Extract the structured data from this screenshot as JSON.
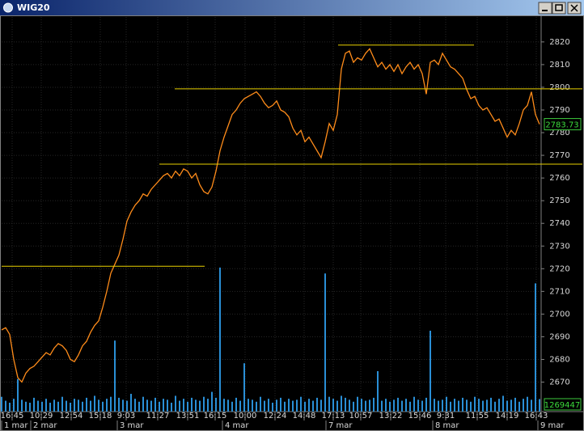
{
  "chart_data": {
    "type": "line",
    "title": "WIG20",
    "xlim": [
      0,
      133
    ],
    "xticks": [
      {
        "value": 2.6,
        "label": "16:45"
      },
      {
        "value": 9.8,
        "label": "10:29"
      },
      {
        "value": 17.2,
        "label": "12:54"
      },
      {
        "value": 24.4,
        "label": "15:18"
      },
      {
        "value": 30.8,
        "label": "9:03"
      },
      {
        "value": 38.6,
        "label": "11:27"
      },
      {
        "value": 46,
        "label": "13:51"
      },
      {
        "value": 52.8,
        "label": "16:15"
      },
      {
        "value": 60.2,
        "label": "10:00"
      },
      {
        "value": 67.6,
        "label": "12:24"
      },
      {
        "value": 74.8,
        "label": "14:48"
      },
      {
        "value": 82,
        "label": "17:13"
      },
      {
        "value": 88.8,
        "label": "10:57"
      },
      {
        "value": 96.2,
        "label": "13:22"
      },
      {
        "value": 103.4,
        "label": "15:46"
      },
      {
        "value": 109.8,
        "label": "9:31"
      },
      {
        "value": 117.6,
        "label": "11:55"
      },
      {
        "value": 125,
        "label": "14:19"
      },
      {
        "value": 132.2,
        "label": "16:43"
      }
    ],
    "date_ticks": [
      {
        "value": 0,
        "label": "1 mar"
      },
      {
        "value": 7.2,
        "label": "2 mar"
      },
      {
        "value": 28.6,
        "label": "3 mar"
      },
      {
        "value": 54.6,
        "label": "4 mar"
      },
      {
        "value": 80.2,
        "label": "7 mar"
      },
      {
        "value": 106.6,
        "label": "8 mar"
      },
      {
        "value": 132.6,
        "label": "9 mar"
      }
    ],
    "ylim": [
      2657,
      2831
    ],
    "yticks": [
      2670,
      2680,
      2690,
      2700,
      2710,
      2720,
      2730,
      2740,
      2750,
      2760,
      2770,
      2780,
      2790,
      2800,
      2810,
      2820
    ],
    "y2lim": [
      0,
      40000000
    ],
    "grid": true,
    "hlines": [
      {
        "value": 2818.6,
        "x0": 83.2,
        "x1": 116.8
      },
      {
        "value": 2799.3,
        "x0": 42.8,
        "x1": 143.6
      },
      {
        "value": 2766.1,
        "x0": 39,
        "x1": 143.6
      },
      {
        "value": 2721.1,
        "x0": 0,
        "x1": 50.2
      }
    ],
    "hline_color": "#e8d000",
    "series": [
      {
        "color": "#ff8c1a",
        "values": [
          2693,
          2694,
          2691,
          2680,
          2672,
          2670,
          2674,
          2676,
          2677,
          2679,
          2681,
          2683,
          2682,
          2685,
          2687,
          2686,
          2684,
          2680,
          2679,
          2682,
          2686,
          2688,
          2692,
          2695,
          2697,
          2703,
          2710,
          2718,
          2722,
          2726,
          2733,
          2741,
          2745,
          2748,
          2750,
          2753,
          2752,
          2755,
          2757,
          2759,
          2761,
          2762,
          2760,
          2763,
          2761,
          2764,
          2763,
          2760,
          2762,
          2757,
          2754,
          2753,
          2756,
          2763,
          2772,
          2778,
          2783,
          2788,
          2790,
          2793,
          2795,
          2796,
          2797,
          2798,
          2796,
          2793,
          2791,
          2792,
          2794,
          2790,
          2789,
          2787,
          2782,
          2779,
          2781,
          2776,
          2778,
          2775,
          2772,
          2769,
          2776,
          2784,
          2781,
          2788,
          2808,
          2815,
          2816,
          2811,
          2813,
          2812,
          2815,
          2817,
          2813,
          2809,
          2811,
          2808,
          2810,
          2807,
          2810,
          2806,
          2809,
          2811,
          2808,
          2810,
          2806,
          2797,
          2811,
          2812,
          2810,
          2815,
          2812,
          2809,
          2808,
          2806,
          2804,
          2799,
          2795,
          2796,
          2792,
          2790,
          2791,
          2788,
          2785,
          2786,
          2782,
          2778,
          2781,
          2779,
          2784,
          2790,
          2792,
          2798,
          2788,
          2783.73
        ]
      },
      {
        "color": "#2a8fd6",
        "axis": "y2",
        "values": [
          1500000,
          1100000,
          900000,
          1300000,
          3300000,
          1200000,
          1000000,
          900000,
          1400000,
          1100000,
          1000000,
          1300000,
          900000,
          1200000,
          1000000,
          1500000,
          1100000,
          900000,
          1300000,
          1200000,
          1000000,
          1400000,
          1100000,
          1600000,
          1200000,
          1000000,
          1300000,
          1500000,
          7200000,
          1400000,
          1200000,
          1100000,
          1800000,
          1300000,
          1000000,
          1500000,
          1200000,
          1100000,
          1400000,
          1000000,
          1300000,
          1200000,
          900000,
          1600000,
          1100000,
          1300000,
          1000000,
          1400000,
          1200000,
          1100000,
          1500000,
          1300000,
          2000000,
          1400000,
          14600000,
          1300000,
          1200000,
          1000000,
          1400000,
          1100000,
          4900000,
          1300000,
          1200000,
          1000000,
          1500000,
          1100000,
          1300000,
          900000,
          1200000,
          1400000,
          1000000,
          1300000,
          1100000,
          1200000,
          1500000,
          1000000,
          1300000,
          1100000,
          1400000,
          1200000,
          14000000,
          1500000,
          1300000,
          1100000,
          1600000,
          1400000,
          1200000,
          1000000,
          1500000,
          1300000,
          1100000,
          1200000,
          1400000,
          4100000,
          1100000,
          1300000,
          1000000,
          1200000,
          1400000,
          1100000,
          1300000,
          1000000,
          1500000,
          1200000,
          1100000,
          1400000,
          8200000,
          1300000,
          1100000,
          1200000,
          1500000,
          1000000,
          1300000,
          1100000,
          1400000,
          1200000,
          1000000,
          1500000,
          1300000,
          1100000,
          1200000,
          1400000,
          1000000,
          1300000,
          1600000,
          1100000,
          1200000,
          1400000,
          1000000,
          1300000,
          1500000,
          1200000,
          13000000,
          1269447
        ]
      }
    ]
  }
}
